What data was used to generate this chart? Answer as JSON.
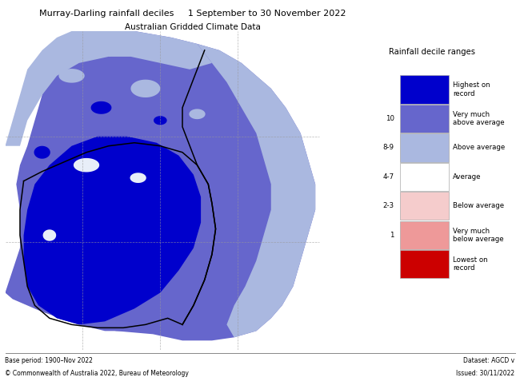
{
  "title_line1": "Murray-Darling rainfall deciles     1 September to 30 November 2022",
  "title_line2": "Australian Gridded Climate Data",
  "footer_left1": "Base period: 1900–Nov 2022",
  "footer_left2": "© Commonwealth of Australia 2022, Bureau of Meteorology",
  "footer_right1": "Dataset: AGCD v",
  "footer_right2": "Issued: 30/11/2022",
  "legend_title": "Rainfall decile ranges",
  "legend_items": [
    {
      "label": "Highest on\nrecord",
      "color": "#0000cc",
      "tick": ""
    },
    {
      "label": "Very much\nabove average",
      "color": "#6666cc",
      "tick": "10"
    },
    {
      "label": "Above average",
      "color": "#aab8e0",
      "tick": "8-9"
    },
    {
      "label": "Average",
      "color": "#ffffff",
      "tick": "4-7"
    },
    {
      "label": "Below average",
      "color": "#f5cccc",
      "tick": "2-3"
    },
    {
      "label": "Very much\nbelow average",
      "color": "#ee9999",
      "tick": "1"
    },
    {
      "label": "Lowest on\nrecord",
      "color": "#cc0000",
      "tick": ""
    }
  ],
  "c_highest": "#0000cc",
  "c_very_above": "#6666cc",
  "c_above": "#aab8e0",
  "c_average": "#e8eef8",
  "c_below": "#f5cccc",
  "c_v_below": "#ee9999",
  "c_lowest": "#cc0000",
  "fig_bg": "#ffffff"
}
